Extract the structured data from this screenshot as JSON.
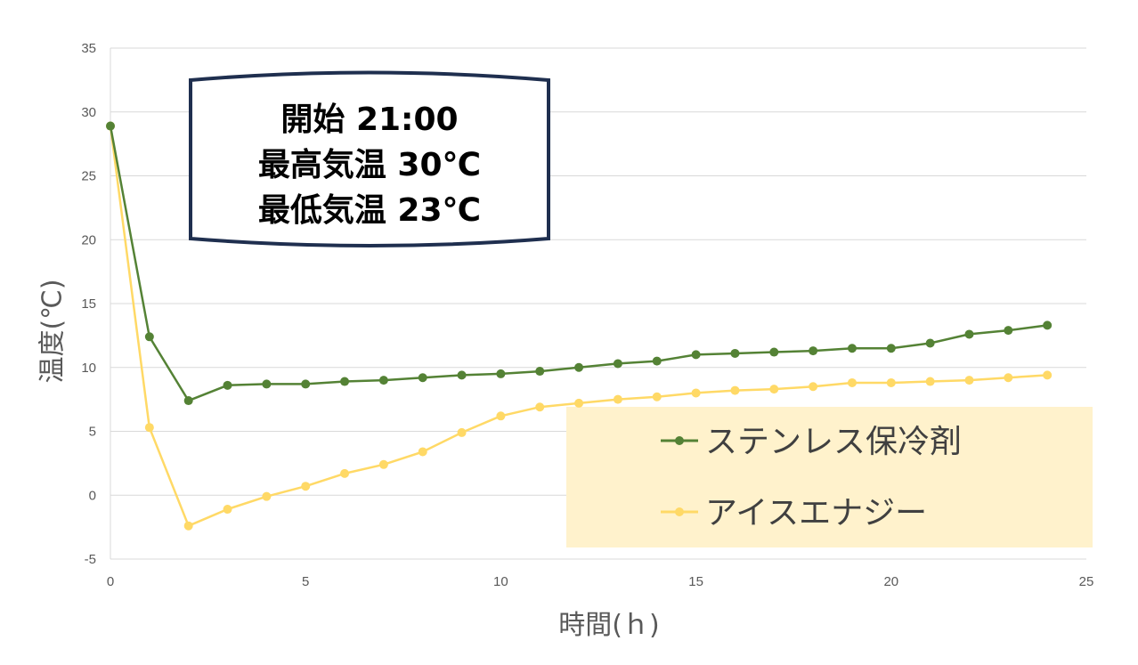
{
  "chart_data": {
    "type": "line",
    "xlabel": "時間(ｈ)",
    "ylabel": "温度(℃)",
    "xlim": [
      0,
      25
    ],
    "ylim": [
      -5,
      35
    ],
    "xticks": [
      0,
      5,
      10,
      15,
      20,
      25
    ],
    "yticks": [
      -5,
      0,
      5,
      10,
      15,
      20,
      25,
      30,
      35
    ],
    "grid": "horizontal",
    "legend_position": "bottom-right",
    "annotation": [
      "開始 21:00",
      "最高気温 30℃",
      "最低気温 23℃"
    ],
    "x": [
      0,
      1,
      2,
      3,
      4,
      5,
      6,
      7,
      8,
      9,
      10,
      11,
      12,
      13,
      14,
      15,
      16,
      17,
      18,
      19,
      20,
      21,
      22,
      23,
      24
    ],
    "series": [
      {
        "name": "ステンレス保冷剤",
        "color": "#548235",
        "values": [
          28.9,
          12.4,
          7.4,
          8.6,
          8.7,
          8.7,
          8.9,
          9.0,
          9.2,
          9.4,
          9.5,
          9.7,
          10.0,
          10.3,
          10.5,
          11.0,
          11.1,
          11.2,
          11.3,
          11.5,
          11.5,
          11.9,
          12.6,
          12.9,
          13.3
        ]
      },
      {
        "name": "アイスエナジー",
        "color": "#FFD966",
        "values": [
          28.9,
          5.3,
          -2.4,
          -1.1,
          -0.1,
          0.7,
          1.7,
          2.4,
          3.4,
          4.9,
          6.2,
          6.9,
          7.2,
          7.5,
          7.7,
          8.0,
          8.2,
          8.3,
          8.5,
          8.8,
          8.8,
          8.9,
          9.0,
          9.2,
          9.4
        ]
      }
    ]
  }
}
